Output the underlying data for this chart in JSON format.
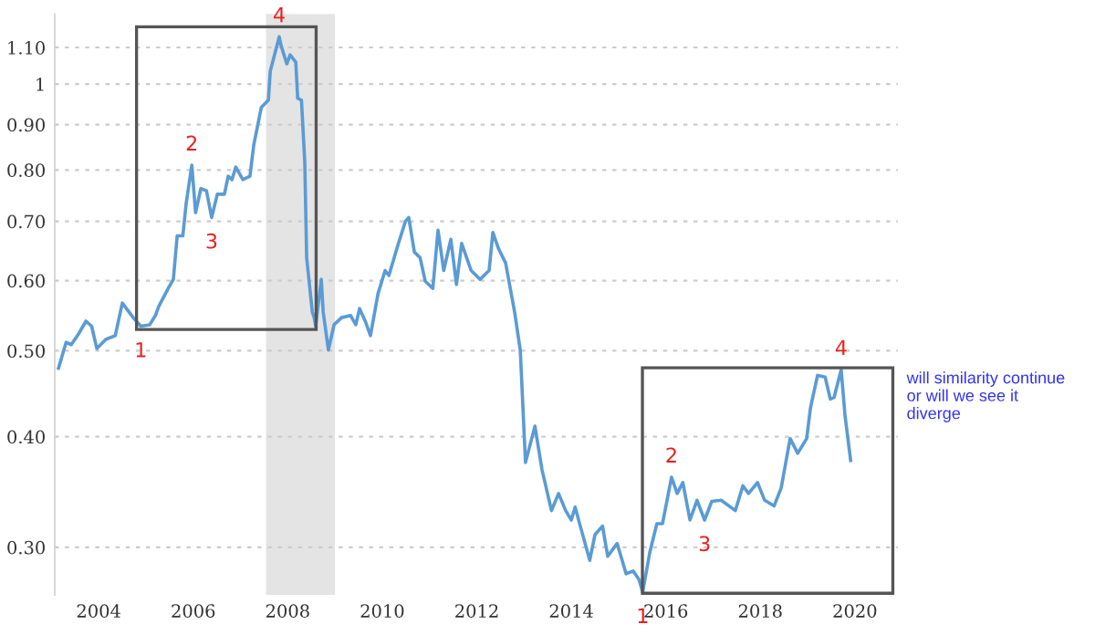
{
  "chart_data": {
    "type": "line",
    "x": [
      2003.15,
      2003.31,
      2003.42,
      2003.58,
      2003.73,
      2003.85,
      2003.96,
      2004.15,
      2004.35,
      2004.5,
      2004.73,
      2004.89,
      2005.08,
      2005.2,
      2005.27,
      2005.47,
      2005.58,
      2005.66,
      2005.78,
      2005.85,
      2005.97,
      2006.05,
      2006.16,
      2006.28,
      2006.39,
      2006.51,
      2006.66,
      2006.74,
      2006.82,
      2006.9,
      2007.05,
      2007.2,
      2007.28,
      2007.44,
      2007.59,
      2007.63,
      2007.75,
      2007.82,
      2007.86,
      2007.98,
      2008.05,
      2008.17,
      2008.21,
      2008.29,
      2008.36,
      2008.4,
      2008.52,
      2008.56,
      2008.59,
      2008.71,
      2008.75,
      2008.86,
      2008.98,
      2009.14,
      2009.33,
      2009.44,
      2009.52,
      2009.64,
      2009.75,
      2009.91,
      2010.06,
      2010.14,
      2010.33,
      2010.49,
      2010.56,
      2010.68,
      2010.8,
      2010.91,
      2011.07,
      2011.18,
      2011.3,
      2011.45,
      2011.57,
      2011.68,
      2011.88,
      2012.07,
      2012.26,
      2012.34,
      2012.46,
      2012.61,
      2012.8,
      2012.92,
      2013.03,
      2013.23,
      2013.38,
      2013.58,
      2013.73,
      2013.88,
      2014.0,
      2014.08,
      2014.19,
      2014.39,
      2014.5,
      2014.66,
      2014.77,
      2014.97,
      2015.16,
      2015.31,
      2015.43,
      2015.51,
      2015.66,
      2015.81,
      2015.93,
      2016.12,
      2016.24,
      2016.36,
      2016.51,
      2016.66,
      2016.82,
      2016.97,
      2017.17,
      2017.47,
      2017.63,
      2017.75,
      2017.94,
      2018.09,
      2018.29,
      2018.44,
      2018.63,
      2018.79,
      2018.98,
      2019.06,
      2019.21,
      2019.37,
      2019.48,
      2019.56,
      2019.71,
      2019.79,
      2019.91
    ],
    "series": [
      {
        "color": "#5a9bd4",
        "values": [
          0.478,
          0.511,
          0.508,
          0.523,
          0.54,
          0.533,
          0.503,
          0.515,
          0.52,
          0.566,
          0.545,
          0.533,
          0.535,
          0.548,
          0.561,
          0.588,
          0.602,
          0.674,
          0.674,
          0.733,
          0.81,
          0.716,
          0.762,
          0.758,
          0.707,
          0.751,
          0.751,
          0.787,
          0.78,
          0.806,
          0.78,
          0.787,
          0.853,
          0.941,
          0.959,
          1.034,
          1.094,
          1.131,
          1.105,
          1.054,
          1.079,
          1.059,
          0.964,
          0.959,
          0.817,
          0.637,
          0.553,
          0.545,
          0.533,
          0.602,
          0.553,
          0.501,
          0.535,
          0.545,
          0.548,
          0.535,
          0.558,
          0.54,
          0.52,
          0.58,
          0.616,
          0.608,
          0.658,
          0.7,
          0.707,
          0.646,
          0.637,
          0.599,
          0.588,
          0.684,
          0.616,
          0.668,
          0.594,
          0.661,
          0.616,
          0.602,
          0.616,
          0.68,
          0.652,
          0.628,
          0.553,
          0.501,
          0.374,
          0.411,
          0.367,
          0.33,
          0.345,
          0.33,
          0.322,
          0.333,
          0.317,
          0.29,
          0.31,
          0.317,
          0.293,
          0.303,
          0.28,
          0.282,
          0.276,
          0.267,
          0.296,
          0.319,
          0.319,
          0.36,
          0.345,
          0.355,
          0.322,
          0.339,
          0.322,
          0.338,
          0.339,
          0.33,
          0.352,
          0.345,
          0.355,
          0.339,
          0.334,
          0.35,
          0.398,
          0.383,
          0.398,
          0.431,
          0.469,
          0.467,
          0.441,
          0.443,
          0.476,
          0.423,
          0.376
        ]
      }
    ],
    "log": "y",
    "xlim": [
      2003.07,
      2020.91
    ],
    "ylim": [
      0.265,
      1.2
    ],
    "xticks": [
      2004,
      2006,
      2008,
      2010,
      2012,
      2014,
      2016,
      2018,
      2020
    ],
    "yticks": [
      {
        "value": 0.3,
        "label": "0.30"
      },
      {
        "value": 0.4,
        "label": "0.40"
      },
      {
        "value": 0.5,
        "label": "0.50"
      },
      {
        "value": 0.6,
        "label": "0.60"
      },
      {
        "value": 0.7,
        "label": "0.70"
      },
      {
        "value": 0.8,
        "label": "0.80"
      },
      {
        "value": 0.9,
        "label": "0.90"
      },
      1,
      {
        "value": 1.1,
        "label": "1.10"
      }
    ],
    "grid": "y",
    "line_style": "solid",
    "bands": [
      {
        "axis": "x",
        "from": 2007.54,
        "to": 2009.0,
        "color": "#e4e4e4"
      }
    ],
    "annotations": [
      {
        "text": "1",
        "x": 2004.89,
        "y": 0.533
      },
      {
        "text": "2",
        "x": 2005.97,
        "y": 0.81
      },
      {
        "text": "3",
        "x": 2006.39,
        "y": 0.707
      },
      {
        "text": "4",
        "x": 2007.82,
        "y": 1.131
      },
      {
        "text": "1",
        "x": 2015.51,
        "y": 0.267
      },
      {
        "text": "2",
        "x": 2016.12,
        "y": 0.36
      },
      {
        "text": "3",
        "x": 2016.82,
        "y": 0.322
      },
      {
        "text": "4",
        "x": 2019.71,
        "y": 0.476
      },
      "will similarity continue\nor will we see it\ndiverge"
    ]
  }
}
